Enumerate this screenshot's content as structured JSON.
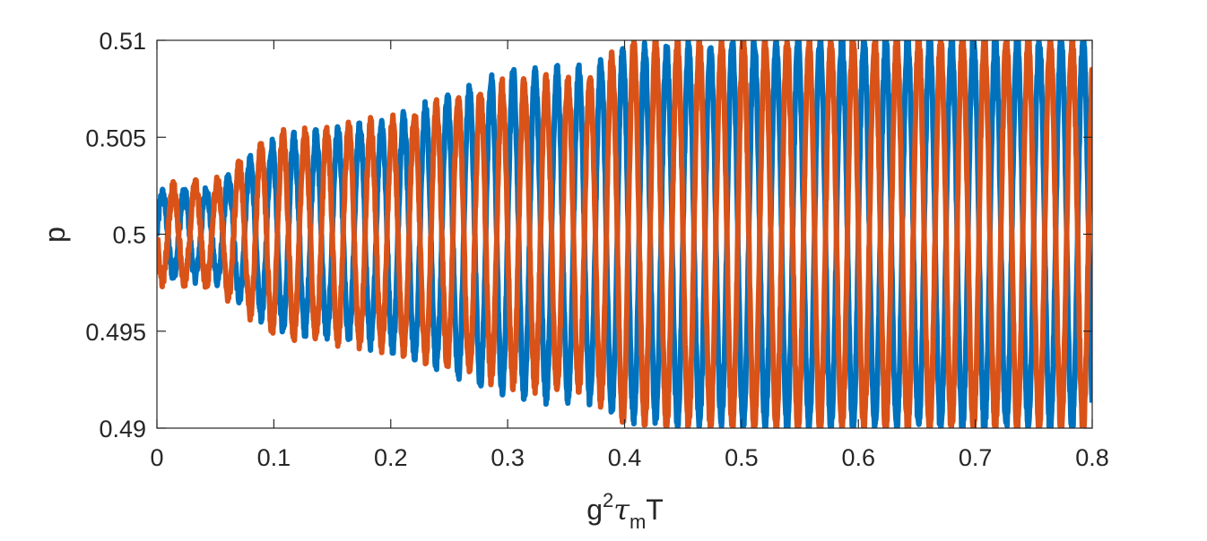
{
  "chart_data": {
    "type": "line",
    "title": "",
    "xlabel": "g2τmT",
    "xlabel_parts": {
      "base": "g",
      "sup": "2",
      "sym": "τ",
      "sub": "m",
      "tail": "T"
    },
    "ylabel": "p",
    "xlim": [
      0,
      0.8
    ],
    "ylim": [
      0.49,
      0.51
    ],
    "xticks": [
      "0",
      "0.1",
      "0.2",
      "0.3",
      "0.4",
      "0.5",
      "0.6",
      "0.7",
      "0.8"
    ],
    "yticks": [
      "0.49",
      "0.495",
      "0.5",
      "0.505",
      "0.51"
    ],
    "grid": false,
    "legend": "none",
    "series": [
      {
        "color": "#0072BD",
        "style": "oscillation",
        "center": 0.5,
        "period": 0.01875,
        "phase": 0,
        "envelope": {
          "x": [
            0,
            0.05,
            0.1,
            0.2,
            0.3,
            0.37,
            0.4,
            0.5,
            0.6,
            0.8
          ],
          "amplitude": [
            0.002,
            0.0022,
            0.0047,
            0.0058,
            0.0083,
            0.0085,
            0.0095,
            0.0098,
            0.01,
            0.01
          ]
        },
        "noise": 0.0004
      },
      {
        "color": "#D95319",
        "style": "oscillation",
        "center": 0.5,
        "period": 0.01875,
        "phase": 3.14159,
        "envelope": {
          "x": [
            0,
            0.05,
            0.1,
            0.2,
            0.3,
            0.37,
            0.4,
            0.5,
            0.6,
            0.8
          ],
          "amplitude": [
            0.0023,
            0.0026,
            0.005,
            0.0058,
            0.0077,
            0.008,
            0.0098,
            0.0099,
            0.01,
            0.01
          ]
        },
        "noise": 0.0004
      }
    ]
  }
}
